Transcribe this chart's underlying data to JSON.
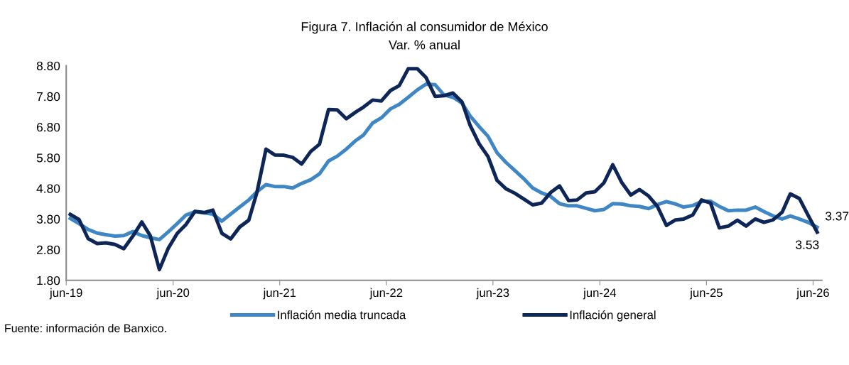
{
  "chart_data": {
    "type": "line",
    "title": "Figura 7. Inflación al consumidor de México",
    "subtitle": "Var. % anual",
    "x": [
      "2019-06-15",
      "2019-07-15",
      "2019-08-15",
      "2019-09-15",
      "2019-10-15",
      "2019-11-15",
      "2019-12-15",
      "2020-01-15",
      "2020-02-15",
      "2020-03-15",
      "2020-04-15",
      "2020-05-15",
      "2020-06-15",
      "2020-07-15",
      "2020-08-15",
      "2020-09-15",
      "2020-10-15",
      "2020-11-15",
      "2020-12-15",
      "2021-01-15",
      "2021-02-15",
      "2021-03-15",
      "2021-04-15",
      "2021-05-15",
      "2021-06-15",
      "2021-07-15",
      "2021-08-15",
      "2021-09-15",
      "2021-10-15",
      "2021-11-15",
      "2021-12-15",
      "2022-01-15",
      "2022-02-15",
      "2022-03-15",
      "2022-04-15",
      "2022-05-15",
      "2022-06-15",
      "2022-07-15",
      "2022-08-15",
      "2022-09-15",
      "2022-10-15",
      "2022-11-15",
      "2022-12-15",
      "2023-01-15",
      "2023-02-15",
      "2023-03-15",
      "2023-04-15",
      "2023-05-15",
      "2023-06-15",
      "2023-07-15",
      "2023-08-15",
      "2023-09-15",
      "2023-10-15",
      "2023-11-15",
      "2023-12-15",
      "2024-01-15",
      "2024-02-15",
      "2024-03-15",
      "2024-04-15",
      "2024-05-15",
      "2024-06-15",
      "2024-07-15",
      "2024-08-15",
      "2024-09-15",
      "2024-10-15",
      "2024-11-15",
      "2024-12-15",
      "2025-01-15",
      "2025-02-15",
      "2025-03-15",
      "2025-04-15",
      "2025-05-15",
      "2025-06-15",
      "2025-07-15",
      "2025-08-15",
      "2025-09-15",
      "2025-10-15",
      "2025-11-15",
      "2025-12-15",
      "2026-01-15",
      "2026-02-15",
      "2026-03-15",
      "2026-04-15",
      "2026-05-15",
      "2026-06-15"
    ],
    "series": [
      {
        "name": "Inflación media truncada",
        "color": "#3f86c4",
        "values": [
          3.82,
          3.65,
          3.46,
          3.34,
          3.29,
          3.24,
          3.26,
          3.39,
          3.26,
          3.19,
          3.13,
          3.38,
          3.65,
          3.93,
          4.04,
          4.0,
          3.96,
          3.73,
          3.96,
          4.19,
          4.42,
          4.69,
          4.92,
          4.86,
          4.86,
          4.81,
          4.96,
          5.08,
          5.27,
          5.69,
          5.85,
          6.08,
          6.35,
          6.54,
          6.93,
          7.1,
          7.39,
          7.54,
          7.77,
          8.01,
          8.2,
          8.18,
          7.85,
          7.77,
          7.58,
          7.16,
          6.81,
          6.5,
          5.96,
          5.65,
          5.38,
          5.11,
          4.81,
          4.65,
          4.54,
          4.3,
          4.23,
          4.23,
          4.15,
          4.07,
          4.11,
          4.3,
          4.29,
          4.23,
          4.21,
          4.14,
          4.27,
          4.37,
          4.29,
          4.19,
          4.24,
          4.37,
          4.38,
          4.21,
          4.07,
          4.09,
          4.09,
          4.19,
          4.04,
          3.9,
          3.8,
          3.9,
          3.8,
          3.69,
          3.53
        ]
      },
      {
        "name": "Inflación general",
        "color": "#0d2557",
        "values": [
          3.95,
          3.78,
          3.16,
          3.0,
          3.02,
          2.97,
          2.83,
          3.24,
          3.7,
          3.25,
          2.15,
          2.84,
          3.33,
          3.62,
          4.05,
          4.01,
          4.09,
          3.33,
          3.15,
          3.54,
          3.76,
          4.67,
          6.08,
          5.89,
          5.88,
          5.81,
          5.59,
          6.0,
          6.24,
          7.37,
          7.36,
          7.07,
          7.28,
          7.45,
          7.68,
          7.65,
          7.99,
          8.15,
          8.7,
          8.7,
          8.41,
          7.8,
          7.82,
          7.91,
          7.62,
          6.85,
          6.25,
          5.84,
          5.06,
          4.79,
          4.64,
          4.45,
          4.26,
          4.32,
          4.66,
          4.88,
          4.4,
          4.42,
          4.65,
          4.69,
          4.98,
          5.57,
          4.99,
          4.58,
          4.76,
          4.55,
          4.21,
          3.59,
          3.77,
          3.8,
          3.93,
          4.42,
          4.32,
          3.51,
          3.57,
          3.76,
          3.57,
          3.8,
          3.69,
          3.77,
          4.02,
          4.62,
          4.47,
          3.92,
          3.37
        ]
      }
    ],
    "xlim": [
      "2019-06-01",
      "2026-07-01"
    ],
    "xticks": [
      {
        "value": "2019-06-01",
        "label": "jun-19"
      },
      {
        "value": "2020-06-01",
        "label": "jun-20"
      },
      {
        "value": "2021-06-01",
        "label": "jun-21"
      },
      {
        "value": "2022-06-01",
        "label": "jun-22"
      },
      {
        "value": "2023-06-01",
        "label": "jun-23"
      },
      {
        "value": "2024-06-01",
        "label": "jun-24"
      },
      {
        "value": "2025-06-01",
        "label": "jun-25"
      },
      {
        "value": "2026-06-01",
        "label": "jun-26"
      }
    ],
    "ylim": [
      1.8,
      8.8
    ],
    "yticks": [
      {
        "value": 1.8,
        "label": "1.80"
      },
      {
        "value": 2.8,
        "label": "2.80"
      },
      {
        "value": 3.8,
        "label": "3.80"
      },
      {
        "value": 4.8,
        "label": "4.80"
      },
      {
        "value": 5.8,
        "label": "5.80"
      },
      {
        "value": 6.8,
        "label": "6.80"
      },
      {
        "value": 7.8,
        "label": "7.80"
      },
      {
        "value": 8.8,
        "label": "8.80"
      }
    ],
    "grid": false,
    "legend": "bottom",
    "marker": "none",
    "line_style": "solid",
    "annotations": [
      "Fuente: información de Banxico.",
      {
        "text": "3.37",
        "x": "2026-06-15",
        "y": 3.37
      },
      {
        "text": "3.53",
        "x": "2026-06-15",
        "y": 3.53
      }
    ]
  }
}
